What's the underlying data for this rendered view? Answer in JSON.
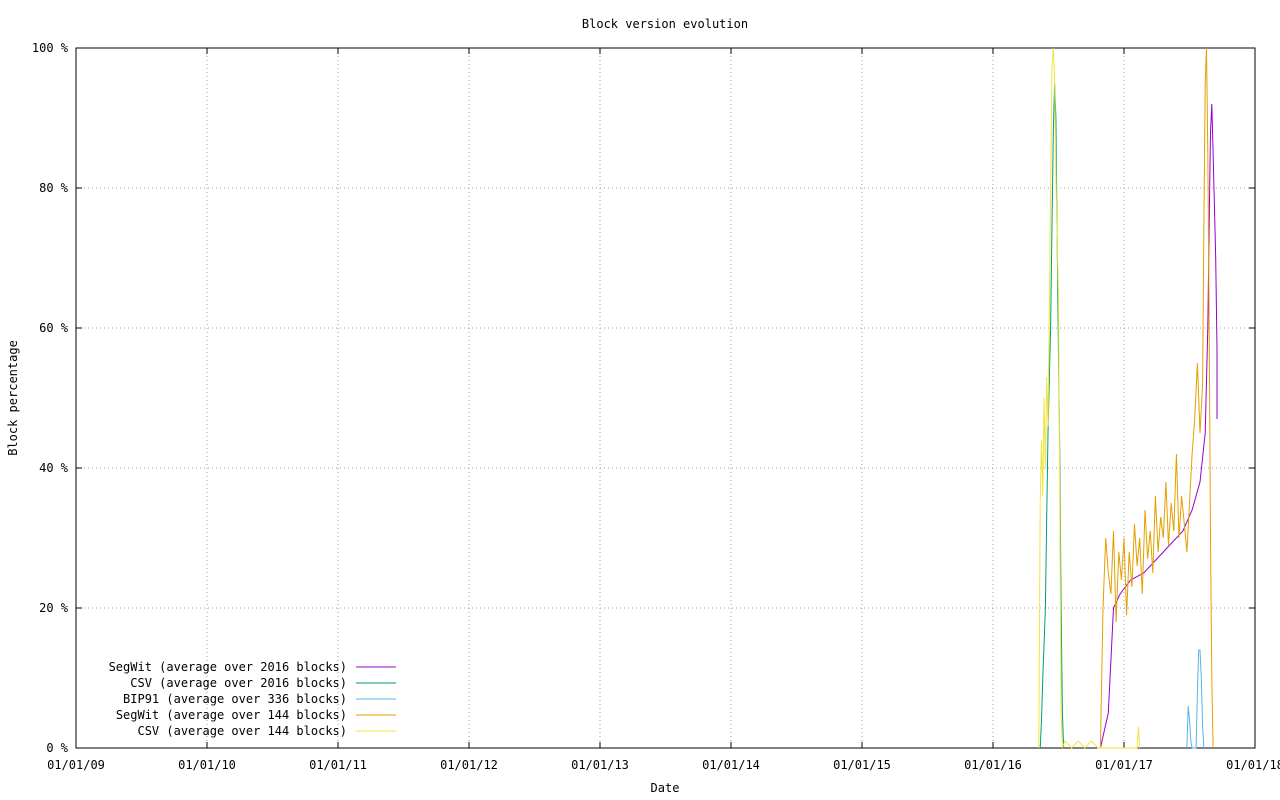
{
  "chart_data": {
    "type": "line",
    "title": "Block version evolution",
    "xlabel": "Date",
    "ylabel": "Block percentage",
    "x_ticks": [
      "01/01/09",
      "01/01/10",
      "01/01/11",
      "01/01/12",
      "01/01/13",
      "01/01/14",
      "01/01/15",
      "01/01/16",
      "01/01/17",
      "01/01/18"
    ],
    "y_ticks": [
      "0 %",
      "20 %",
      "40 %",
      "60 %",
      "80 %",
      "100 %"
    ],
    "x_unit": "years since 2009-01-01",
    "xlim": [
      0,
      9.0
    ],
    "ylim": [
      0,
      100
    ],
    "grid": true,
    "legend_position": "bottom-left",
    "series": [
      {
        "name": "SegWit (average over 2016 blocks)",
        "color": "#9400d3",
        "points": [
          [
            7.82,
            0
          ],
          [
            7.88,
            5
          ],
          [
            7.92,
            20
          ],
          [
            7.97,
            22
          ],
          [
            8.05,
            24
          ],
          [
            8.15,
            25
          ],
          [
            8.25,
            27
          ],
          [
            8.35,
            29
          ],
          [
            8.45,
            31
          ],
          [
            8.52,
            34
          ],
          [
            8.58,
            38
          ],
          [
            8.62,
            45
          ],
          [
            8.64,
            60
          ],
          [
            8.65,
            75
          ],
          [
            8.66,
            88
          ],
          [
            8.67,
            92
          ],
          [
            8.68,
            85
          ],
          [
            8.7,
            70
          ],
          [
            8.71,
            57
          ],
          [
            8.71,
            47
          ]
        ]
      },
      {
        "name": "CSV (average over 2016 blocks)",
        "color": "#009e73",
        "points": [
          [
            7.36,
            0
          ],
          [
            7.37,
            4
          ],
          [
            7.38,
            10
          ],
          [
            7.4,
            20
          ],
          [
            7.41,
            33
          ],
          [
            7.42,
            45
          ],
          [
            7.44,
            60
          ],
          [
            7.45,
            75
          ],
          [
            7.46,
            88
          ],
          [
            7.47,
            95
          ],
          [
            7.48,
            90
          ],
          [
            7.49,
            72
          ],
          [
            7.5,
            56
          ],
          [
            7.51,
            42
          ],
          [
            7.52,
            20
          ],
          [
            7.53,
            5
          ],
          [
            7.54,
            0
          ]
        ]
      },
      {
        "name": "BIP91 (average over 336 blocks)",
        "color": "#56b4e9",
        "points": [
          [
            8.48,
            0
          ],
          [
            8.49,
            6
          ],
          [
            8.5,
            4
          ],
          [
            8.51,
            1
          ],
          [
            8.52,
            0
          ],
          [
            8.55,
            0
          ],
          [
            8.56,
            8
          ],
          [
            8.57,
            14
          ],
          [
            8.58,
            14
          ],
          [
            8.59,
            10
          ],
          [
            8.6,
            3
          ],
          [
            8.61,
            0
          ]
        ]
      },
      {
        "name": "SegWit (average over 144 blocks)",
        "color": "#e69f00",
        "points": [
          [
            7.82,
            0
          ],
          [
            7.84,
            20
          ],
          [
            7.86,
            30
          ],
          [
            7.88,
            25
          ],
          [
            7.9,
            22
          ],
          [
            7.92,
            31
          ],
          [
            7.94,
            18
          ],
          [
            7.96,
            28
          ],
          [
            7.98,
            24
          ],
          [
            8.0,
            30
          ],
          [
            8.02,
            19
          ],
          [
            8.04,
            28
          ],
          [
            8.06,
            23
          ],
          [
            8.08,
            32
          ],
          [
            8.1,
            26
          ],
          [
            8.12,
            30
          ],
          [
            8.14,
            22
          ],
          [
            8.16,
            34
          ],
          [
            8.18,
            27
          ],
          [
            8.2,
            31
          ],
          [
            8.22,
            25
          ],
          [
            8.24,
            36
          ],
          [
            8.26,
            28
          ],
          [
            8.28,
            33
          ],
          [
            8.3,
            30
          ],
          [
            8.32,
            38
          ],
          [
            8.34,
            29
          ],
          [
            8.36,
            35
          ],
          [
            8.38,
            31
          ],
          [
            8.4,
            42
          ],
          [
            8.42,
            30
          ],
          [
            8.44,
            36
          ],
          [
            8.46,
            32
          ],
          [
            8.48,
            28
          ],
          [
            8.5,
            35
          ],
          [
            8.52,
            42
          ],
          [
            8.54,
            47
          ],
          [
            8.56,
            55
          ],
          [
            8.58,
            45
          ],
          [
            8.6,
            52
          ],
          [
            8.61,
            75
          ],
          [
            8.62,
            95
          ],
          [
            8.63,
            100
          ],
          [
            8.64,
            85
          ],
          [
            8.65,
            60
          ],
          [
            8.66,
            30
          ],
          [
            8.67,
            10
          ],
          [
            8.68,
            0
          ]
        ]
      },
      {
        "name": "CSV (average over 144 blocks)",
        "color": "#f0e442",
        "points": [
          [
            7.35,
            0
          ],
          [
            7.36,
            35
          ],
          [
            7.37,
            44
          ],
          [
            7.38,
            36
          ],
          [
            7.39,
            50
          ],
          [
            7.4,
            40
          ],
          [
            7.41,
            53
          ],
          [
            7.42,
            46
          ],
          [
            7.43,
            62
          ],
          [
            7.44,
            80
          ],
          [
            7.45,
            97
          ],
          [
            7.46,
            100
          ],
          [
            7.47,
            96
          ],
          [
            7.48,
            82
          ],
          [
            7.49,
            72
          ],
          [
            7.5,
            65
          ],
          [
            7.51,
            35
          ],
          [
            7.52,
            5
          ],
          [
            7.53,
            0
          ],
          [
            7.55,
            1
          ],
          [
            7.6,
            0
          ],
          [
            7.65,
            1
          ],
          [
            7.7,
            0
          ],
          [
            7.75,
            1
          ],
          [
            7.8,
            0
          ],
          [
            8.1,
            0
          ],
          [
            8.11,
            3
          ],
          [
            8.12,
            0
          ]
        ]
      }
    ]
  }
}
